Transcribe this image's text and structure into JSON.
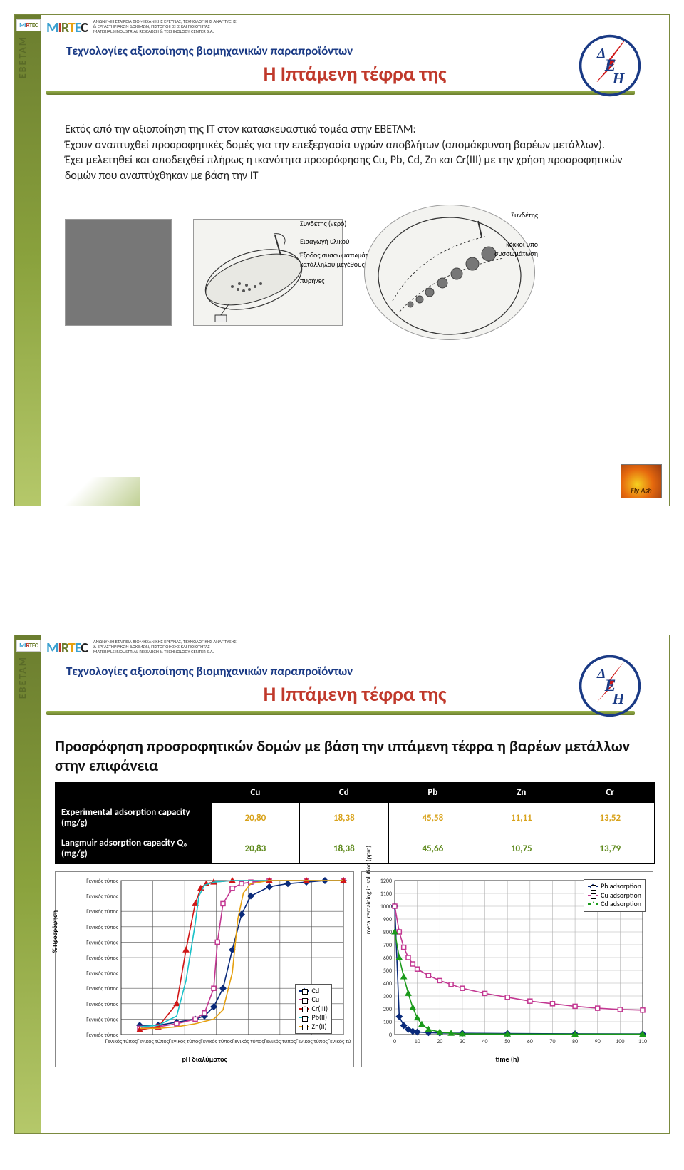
{
  "brand": {
    "mirtec": "MIRTEC",
    "ebetam": "EBETAM",
    "mirtec_sub1": "ΑΝΩΝΥΜΗ ΕΤΑΙΡΕΙΑ ΒΙΟΜΗΧΑΝΙΚΗΣ ΕΡΕΥΝΑΣ, ΤΕΧΝΟΛΟΓΙΚΗΣ ΑΝΑΠΤΥΞΗΣ",
    "mirtec_sub2": "& ΕΡΓΑΣΤΗΡΙΑΚΩΝ ΔΟΚΙΜΩΝ, ΠΙΣΤΟΠΟΙΗΣΗΣ ΚΑΙ ΠΟΙΟΤΗΤΑΣ",
    "mirtec_sub3": "MATERIALS INDUSTRIAL RESEARCH & TECHNOLOGY CENTER S.A.",
    "dei": "ΔΕΗ"
  },
  "slide_super": "Τεχνολογίες αξιοποίησης βιομηχανικών παραπροϊόντων",
  "slide_title": "Η Ιπτάμενη τέφρα της",
  "flyash_badge": "Fly Ash",
  "slide1": {
    "body_l1": "Εκτός από την αξιοποίηση της ΙΤ στον κατασκευαστικό τομέα στην ΕΒΕΤΑΜ:",
    "body_l2": "Έχουν αναπτυχθεί προσροφητικές δομές για την επεξεργασία υγρών αποβλήτων (απομάκρυνση βαρέων μετάλλων).",
    "body_l3": "Έχει μελετηθεί και αποδειχθεί πλήρως η ικανότητα προσρόφησης Cu, Pb, Cd, Zn και Cr(ΙΙΙ) με την χρήση προσροφητικών δομών που αναπτύχθηκαν με βάση την ΙΤ",
    "fig1_labels": {
      "syndetis": "Συνδέτης (νερό)",
      "eisagogi": "Εισαγωγή υλικού",
      "exodos": "Έξοδος συσσωματωμάτων κατάλληλου μεγέθους",
      "pyrines": "πυρήνες"
    },
    "fig2_labels": {
      "syndetis": "Συνδέτης",
      "kokkoi": "κόκκοι υπο συσσωμάτωση"
    }
  },
  "slide2": {
    "section_title": "Προσρόφηση προσροφητικών δομών με βάση  την ιπτάμενη τέφρα η βαρέων μετάλλων στην επιφάνεια",
    "table": {
      "cols": [
        "Cu",
        "Cd",
        "Pb",
        "Zn",
        "Cr"
      ],
      "row1_label": "Experimental adsorption capacity (mg/g)",
      "row1": [
        "20,80",
        "18,38",
        "45,58",
        "11,11",
        "13,52"
      ],
      "row2_label": "Langmuir adsorption capacity Q₀ (mg/g)",
      "row2": [
        "20,83",
        "18,38",
        "45,66",
        "10,75",
        "13,79"
      ]
    },
    "chart1": {
      "type": "line",
      "xlabel": "pH διαλύματος",
      "ylabel": "% Προσρόφηση",
      "ytick_label": "Γενικός τύπος",
      "xtick_label": "Γενικός τύπος",
      "yticks_count": 11,
      "xticks_count": 8,
      "background": "#ffffff",
      "grid_color": "#555555",
      "series": [
        {
          "name": "Cd",
          "color": "#0a2a7a",
          "marker": "diamond",
          "x": [
            1,
            2,
            3,
            4,
            4.5,
            5,
            5.5,
            6,
            6.5,
            7,
            8,
            9,
            10,
            11,
            12
          ],
          "y": [
            6,
            6,
            8,
            10,
            12,
            18,
            30,
            55,
            78,
            90,
            96,
            98,
            99,
            100,
            100
          ]
        },
        {
          "name": "Cu",
          "color": "#c23791",
          "marker": "square",
          "x": [
            1,
            2,
            3,
            4,
            4.5,
            5,
            5.2,
            5.5,
            6,
            6.5,
            7,
            8,
            10,
            12
          ],
          "y": [
            4,
            5,
            7,
            10,
            14,
            30,
            60,
            85,
            95,
            98,
            99,
            100,
            100,
            100
          ]
        },
        {
          "name": "Cr(III)",
          "color": "#d01616",
          "marker": "triangle",
          "x": [
            1,
            2,
            3,
            3.5,
            4,
            4.3,
            4.6,
            5,
            6,
            8,
            10,
            12
          ],
          "y": [
            3,
            5,
            20,
            55,
            85,
            95,
            98,
            99,
            100,
            100,
            100,
            100
          ]
        },
        {
          "name": "Pb(II)",
          "color": "#18c1c8",
          "marker": "line",
          "x": [
            1,
            2,
            3,
            3.5,
            4,
            4.2,
            4.5,
            5,
            6,
            8,
            10,
            12
          ],
          "y": [
            5,
            6,
            12,
            35,
            72,
            90,
            97,
            99,
            100,
            100,
            100,
            100
          ]
        },
        {
          "name": "Zn(II)",
          "color": "#e6a00f",
          "marker": "line",
          "x": [
            1,
            2,
            3,
            4,
            5,
            5.5,
            6,
            6.3,
            6.6,
            7,
            8,
            10,
            12
          ],
          "y": [
            4,
            4,
            5,
            7,
            10,
            16,
            40,
            75,
            92,
            98,
            100,
            100,
            100
          ]
        }
      ],
      "xlim": [
        0,
        12
      ],
      "ylim": [
        0,
        100
      ]
    },
    "chart2": {
      "type": "line",
      "xlabel": "time (h)",
      "ylabel": "metal remaining in solution (ppm)",
      "background": "#ffffff",
      "grid_color": "#b0b0b0",
      "xlim": [
        0,
        110
      ],
      "ylim": [
        0,
        1200
      ],
      "xtick_step": 10,
      "ytick_step": 100,
      "series": [
        {
          "name": "Pb adsorption",
          "color": "#0a2a7a",
          "marker": "diamond",
          "x": [
            0,
            2,
            4,
            6,
            8,
            10,
            15,
            20,
            30,
            50,
            80,
            110
          ],
          "y": [
            1000,
            140,
            70,
            40,
            25,
            20,
            15,
            12,
            10,
            8,
            6,
            5
          ]
        },
        {
          "name": "Cu adsorption",
          "color": "#c23791",
          "marker": "square",
          "x": [
            0,
            2,
            4,
            6,
            8,
            10,
            15,
            20,
            25,
            30,
            40,
            50,
            60,
            70,
            80,
            90,
            100,
            110
          ],
          "y": [
            1000,
            800,
            680,
            600,
            550,
            510,
            460,
            420,
            390,
            360,
            320,
            290,
            260,
            240,
            220,
            205,
            195,
            190
          ]
        },
        {
          "name": "Cd adsorption",
          "color": "#1a9a1a",
          "marker": "triangle",
          "x": [
            0,
            2,
            4,
            6,
            8,
            10,
            12,
            15,
            20,
            25,
            30,
            50,
            80,
            110
          ],
          "y": [
            800,
            600,
            450,
            320,
            210,
            130,
            80,
            40,
            20,
            10,
            6,
            4,
            3,
            3
          ]
        }
      ]
    }
  }
}
